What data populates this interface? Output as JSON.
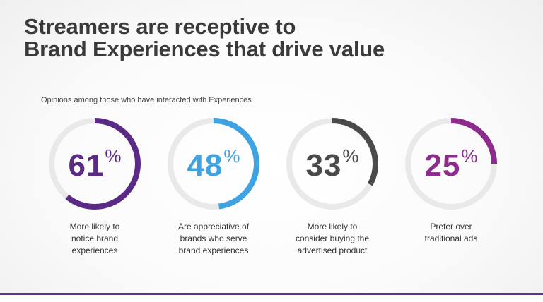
{
  "title": {
    "line1": "Streamers are receptive to",
    "line2": "Brand Experiences that drive value"
  },
  "subtitle": "Opinions among those who have interacted with Experiences",
  "chart_data": {
    "type": "donut",
    "title": "Streamers are receptive to Brand Experiences that drive value",
    "subtitle": "Opinions among those who have interacted with Experiences",
    "unit": "%",
    "items": [
      {
        "value": 61,
        "color": "#5b2a86",
        "label_lines": [
          "More likely to",
          "notice brand",
          "experiences"
        ]
      },
      {
        "value": 48,
        "color": "#3ea3e0",
        "label_lines": [
          "Are appreciative of",
          "brands who serve",
          "brand experiences"
        ]
      },
      {
        "value": 33,
        "color": "#4a4a4a",
        "label_lines": [
          "More likely to",
          "consider buying the",
          "advertised product"
        ]
      },
      {
        "value": 25,
        "color": "#8e2c8e",
        "label_lines": [
          "Prefer over",
          "traditional ads"
        ]
      }
    ],
    "track_color": "#e9e9e9"
  },
  "colors": {
    "footer_accent": "#6b2d90"
  }
}
